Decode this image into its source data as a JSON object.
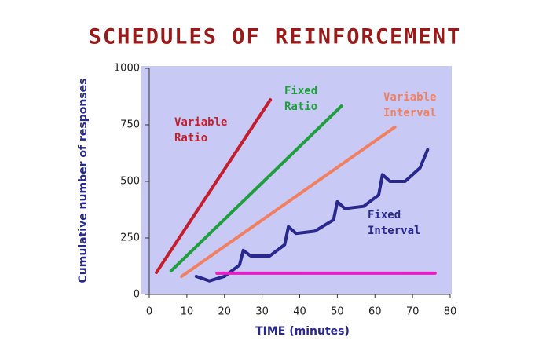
{
  "chart_data": {
    "type": "line",
    "title": "SCHEDULES OF REINFORCEMENT",
    "x_label": "TIME (minutes)",
    "y_label": "Cumulative number of responses",
    "xlim": [
      0,
      80
    ],
    "xticks": [
      0,
      10,
      20,
      30,
      40,
      50,
      60,
      70,
      80
    ],
    "ylim": [
      0,
      1000
    ],
    "yticks": [
      0,
      250,
      500,
      750,
      1000
    ],
    "series": [
      {
        "name": "Variable Ratio",
        "color": "#c41e2c",
        "x": [
          1.9,
          32.2
        ],
        "values": [
          97,
          861
        ]
      },
      {
        "name": "Fixed Ratio",
        "color": "#1e9e3c",
        "x": [
          5.8,
          51.1
        ],
        "values": [
          104,
          833
        ]
      },
      {
        "name": "Variable Interval",
        "color": "#f08060",
        "x": [
          8.6,
          65.3
        ],
        "values": [
          80,
          740
        ]
      },
      {
        "name": "Fixed Interval",
        "color": "#28288e",
        "x": [
          12.5,
          16,
          20,
          24,
          25,
          27,
          32,
          36,
          37,
          39,
          44,
          49,
          50,
          52,
          57,
          61,
          62,
          64,
          68,
          72,
          74
        ],
        "values": [
          80,
          60,
          80,
          130,
          195,
          170,
          170,
          220,
          300,
          270,
          280,
          330,
          410,
          380,
          390,
          440,
          530,
          500,
          500,
          560,
          640
        ]
      },
      {
        "color": "#e020c0",
        "x": [
          18,
          76
        ],
        "values": [
          94,
          94
        ]
      }
    ]
  }
}
